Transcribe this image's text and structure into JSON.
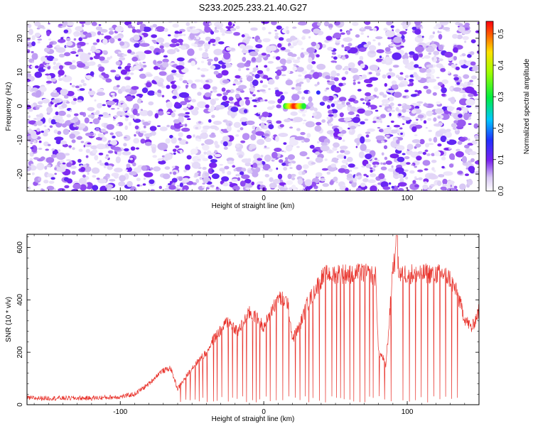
{
  "title": "S233.2025.233.21.40.G27",
  "colors": {
    "snr_line": "#e8312a",
    "frame": "#000000"
  },
  "chart_data": [
    {
      "type": "heatmap",
      "title": "S233.2025.233.21.40.G27",
      "xlabel": "Height of straight line (km)",
      "ylabel": "Frequency (Hz)",
      "xlim": [
        -165,
        150
      ],
      "ylim": [
        -25,
        25
      ],
      "x_ticks": [
        -100,
        0,
        100
      ],
      "y_ticks": [
        -20,
        -10,
        0,
        10,
        20
      ],
      "x_tick_labels": [
        "-100",
        "0",
        "100"
      ],
      "y_tick_labels": [
        "-20",
        "-10",
        "0",
        "10",
        "20"
      ],
      "colorbar": {
        "label": "Normalized spectral amplitude",
        "range": [
          0.0,
          0.54
        ],
        "ticks": [
          0.0,
          0.1,
          0.2,
          0.3,
          0.4,
          0.5
        ],
        "tick_labels": [
          "0.0",
          "0.1",
          "0.2",
          "0.3",
          "0.4",
          "0.5"
        ],
        "colormap": "rainbow (white-violet-blue-cyan-green-yellow-red)"
      },
      "peak": {
        "x_range": [
          15,
          28
        ],
        "y": 0,
        "value": 0.54
      },
      "secondary_peak": {
        "x": 38,
        "y": 4,
        "value": 0.15
      },
      "background_level": [
        0.02,
        0.12
      ]
    },
    {
      "type": "line",
      "xlabel": "Height of straight line (km)",
      "ylabel": "SNR (10 * v/v)",
      "xlim": [
        -165,
        150
      ],
      "ylim": [
        0,
        650
      ],
      "x_ticks": [
        -100,
        0,
        100
      ],
      "y_ticks": [
        0,
        200,
        400,
        600
      ],
      "x_tick_labels": [
        "-100",
        "0",
        "100"
      ],
      "y_tick_labels": [
        "0",
        "200",
        "400",
        "600"
      ],
      "envelope": {
        "x": [
          -165,
          -120,
          -100,
          -90,
          -80,
          -72,
          -65,
          -60,
          -50,
          -40,
          -35,
          -25,
          -18,
          -10,
          -5,
          0,
          10,
          17,
          20,
          25,
          30,
          35,
          40,
          45,
          50,
          60,
          70,
          78,
          80,
          83,
          85,
          87,
          90,
          92,
          95,
          100,
          110,
          120,
          125,
          130,
          135,
          140,
          145,
          150
        ],
        "y": [
          25,
          25,
          30,
          40,
          80,
          125,
          140,
          60,
          140,
          200,
          250,
          320,
          280,
          350,
          330,
          300,
          410,
          390,
          250,
          300,
          380,
          430,
          480,
          500,
          500,
          500,
          500,
          490,
          200,
          180,
          150,
          280,
          530,
          560,
          500,
          500,
          500,
          500,
          500,
          480,
          420,
          330,
          290,
          360
        ]
      },
      "dropouts": {
        "x_range": [
          -60,
          137
        ],
        "description": "rapid repeated drops of SNR toward near-zero values"
      }
    }
  ]
}
